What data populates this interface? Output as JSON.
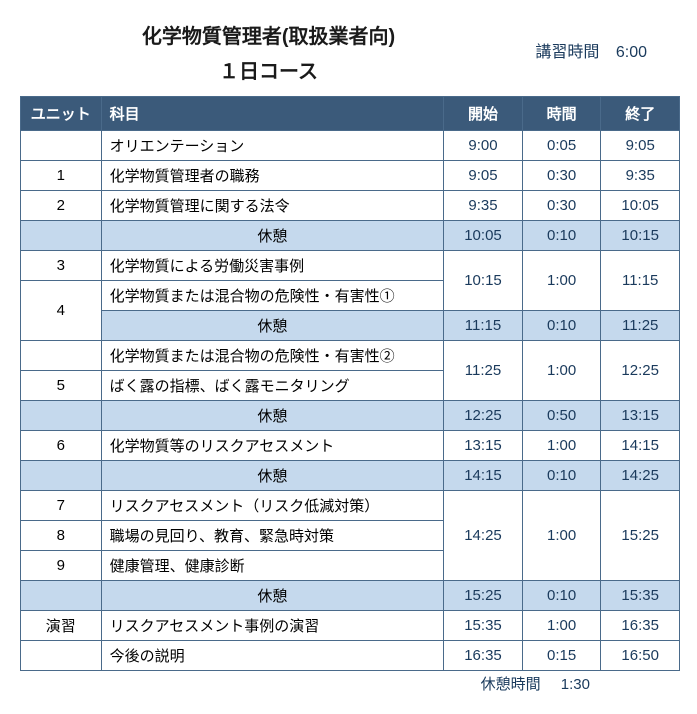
{
  "header": {
    "title_line1": "化学物質管理者(取扱業者向)",
    "title_line2": "１日コース",
    "hours_label": "講習時間",
    "hours_value": "6:00"
  },
  "columns": {
    "unit": "ユニット",
    "subject": "科目",
    "start": "開始",
    "duration": "時間",
    "end": "終了"
  },
  "rows": [
    {
      "type": "normal",
      "unit": "",
      "subject": "オリエンテーション",
      "start": "9:00",
      "dur": "0:05",
      "end": "9:05"
    },
    {
      "type": "normal",
      "unit": "1",
      "subject": "化学物質管理者の職務",
      "start": "9:05",
      "dur": "0:30",
      "end": "9:35"
    },
    {
      "type": "normal",
      "unit": "2",
      "subject": "化学物質管理に関する法令",
      "start": "9:35",
      "dur": "0:30",
      "end": "10:05"
    },
    {
      "type": "break",
      "unit": "",
      "subject": "休憩",
      "start": "10:05",
      "dur": "0:10",
      "end": "10:15"
    },
    {
      "type": "normal",
      "unit": "3",
      "subject": "化学物質による労働災害事例",
      "merge_time": "start",
      "rowspan": 2,
      "start": "10:15",
      "dur": "1:00",
      "end": "11:15"
    },
    {
      "type": "normal",
      "unit": "",
      "unit_rowspan_start": true,
      "unit_rowspan": 2,
      "unit_val": "4",
      "subject": "化学物質または混合物の危険性・有害性①",
      "merge_time": "cont"
    },
    {
      "type": "break",
      "unit_skip": true,
      "subject": "休憩",
      "start": "11:15",
      "dur": "0:10",
      "end": "11:25"
    },
    {
      "type": "normal",
      "unit": "",
      "subject": "化学物質または混合物の危険性・有害性②",
      "merge_time": "start",
      "rowspan": 2,
      "start": "11:25",
      "dur": "1:00",
      "end": "12:25"
    },
    {
      "type": "normal",
      "unit": "5",
      "subject": "ばく露の指標、ばく露モニタリング",
      "merge_time": "cont"
    },
    {
      "type": "break",
      "unit": "",
      "subject": "休憩",
      "start": "12:25",
      "dur": "0:50",
      "end": "13:15"
    },
    {
      "type": "normal",
      "unit": "6",
      "subject": "化学物質等のリスクアセスメント",
      "start": "13:15",
      "dur": "1:00",
      "end": "14:15"
    },
    {
      "type": "break",
      "unit": "",
      "subject": "休憩",
      "start": "14:15",
      "dur": "0:10",
      "end": "14:25"
    },
    {
      "type": "normal",
      "unit": "7",
      "subject": "リスクアセスメント（リスク低減対策）",
      "merge_time": "start",
      "rowspan": 3,
      "start": "14:25",
      "dur": "1:00",
      "end": "15:25"
    },
    {
      "type": "normal",
      "unit": "8",
      "subject": "職場の見回り、教育、緊急時対策",
      "merge_time": "cont"
    },
    {
      "type": "normal",
      "unit": "9",
      "subject": "健康管理、健康診断",
      "merge_time": "cont"
    },
    {
      "type": "break",
      "unit": "",
      "subject": "休憩",
      "start": "15:25",
      "dur": "0:10",
      "end": "15:35"
    },
    {
      "type": "normal",
      "unit": "演習",
      "subject": "リスクアセスメント事例の演習",
      "start": "15:35",
      "dur": "1:00",
      "end": "16:35"
    },
    {
      "type": "normal",
      "unit": "",
      "subject": "今後の説明",
      "start": "16:35",
      "dur": "0:15",
      "end": "16:50"
    }
  ],
  "footer": {
    "label": "休憩時間",
    "value": "1:30"
  },
  "colors": {
    "header_bg": "#3b5a7a",
    "header_fg": "#ffffff",
    "break_bg": "#c5d9ed",
    "border": "#4a6a8a",
    "time_fg": "#1a3a5c"
  }
}
